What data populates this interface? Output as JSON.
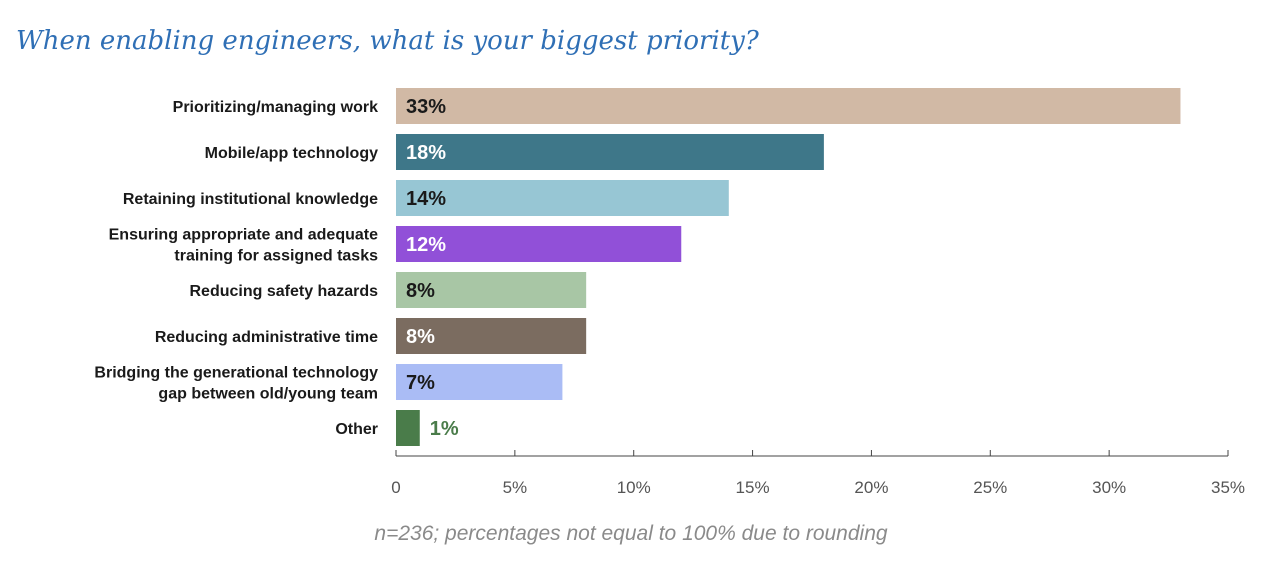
{
  "chart_data": {
    "type": "bar",
    "orientation": "horizontal",
    "title": "When enabling engineers, what is your biggest priority?",
    "note": "n=236; percentages not equal to 100% due to rounding",
    "categories": [
      [
        "Prioritizing/managing work"
      ],
      [
        "Mobile/app technology"
      ],
      [
        "Retaining institutional knowledge"
      ],
      [
        "Ensuring appropriate and adequate",
        "training for assigned tasks"
      ],
      [
        "Reducing safety hazards"
      ],
      [
        "Reducing administrative time"
      ],
      [
        "Bridging the generational technology",
        "gap between old/young team"
      ],
      [
        "Other"
      ]
    ],
    "values": [
      33,
      18,
      14,
      12,
      8,
      8,
      7,
      1
    ],
    "value_labels": [
      "33%",
      "18%",
      "14%",
      "12%",
      "8%",
      "8%",
      "7%",
      "1%"
    ],
    "colors": [
      "#d1b9a5",
      "#3e7789",
      "#97c6d4",
      "#9150d8",
      "#a8c6a5",
      "#7b6c60",
      "#aabcf5",
      "#4a7c4a"
    ],
    "label_colors": [
      "#1a1a1a",
      "#ffffff",
      "#1a1a1a",
      "#ffffff",
      "#1a1a1a",
      "#ffffff",
      "#1a1a1a",
      "#4a7c4a"
    ],
    "xlim": [
      0,
      35
    ],
    "xticks": [
      0,
      5,
      10,
      15,
      20,
      25,
      30,
      35
    ],
    "xtick_labels": [
      "0",
      "5%",
      "10%",
      "15%",
      "20%",
      "25%",
      "30%",
      "35%"
    ],
    "grid": false,
    "legend": "none"
  }
}
